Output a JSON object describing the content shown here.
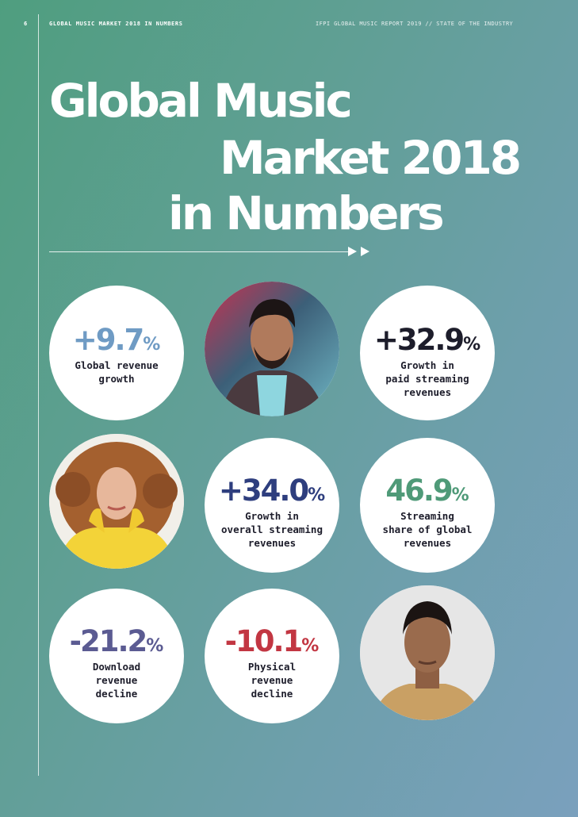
{
  "header": {
    "page_number": "6",
    "section_title": "GLOBAL MUSIC MARKET 2018 IN NUMBERS",
    "report_title": "IFPI GLOBAL MUSIC REPORT 2019 // STATE OF THE INDUSTRY"
  },
  "title": {
    "line1": "Global Music",
    "line2": "Market 2018",
    "line3": "in Numbers"
  },
  "stats": [
    {
      "value": "+9.7",
      "unit": "%",
      "line1": "Global revenue",
      "line2": "growth",
      "line3": "",
      "color": "#6f9bc4"
    },
    {
      "value": "+32.9",
      "unit": "%",
      "line1": "Growth in",
      "line2": "paid streaming",
      "line3": "revenues",
      "color": "#1d1d2b"
    },
    {
      "value": "+34.0",
      "unit": "%",
      "line1": "Growth in",
      "line2": "overall streaming",
      "line3": "revenues",
      "color": "#2e3e7e"
    },
    {
      "value": "46.9",
      "unit": "%",
      "line1": "Streaming",
      "line2": "share of global",
      "line3": "revenues",
      "color": "#4f9a78"
    },
    {
      "value": "-21.2",
      "unit": "%",
      "line1": "Download",
      "line2": "revenue",
      "line3": "decline",
      "color": "#5b5b92"
    },
    {
      "value": "-10.1",
      "unit": "%",
      "line1": "Physical",
      "line2": "revenue",
      "line3": "decline",
      "color": "#c23642"
    }
  ],
  "photos": [
    {
      "name": "artist-photo-man-studded-jacket",
      "skin": "#b07a5c",
      "bg": "#3a6f86",
      "accent": "#d23a5a"
    },
    {
      "name": "artist-photo-woman-curly-hair",
      "skin": "#e7b79b",
      "bg": "#f1efe9",
      "accent": "#f3d338"
    },
    {
      "name": "artist-photo-man-portrait",
      "skin": "#9a6b4d",
      "bg": "#e6e6e6",
      "accent": "#c9a064"
    }
  ]
}
